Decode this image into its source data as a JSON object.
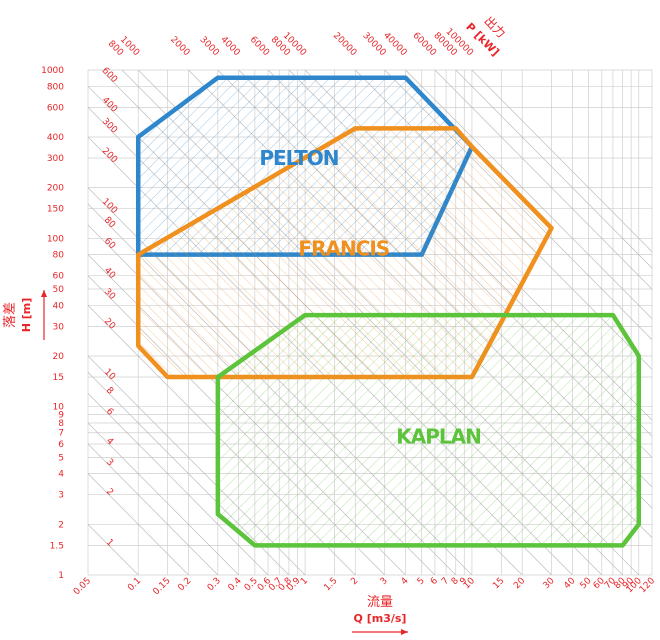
{
  "chart_data": {
    "type": "region",
    "title_x": "流量",
    "xlabel": "Q [m3/s]",
    "title_y": "落差",
    "ylabel": "H [m]",
    "title_p": "出力",
    "plabel": "P [kW]",
    "xscale": "log",
    "yscale": "log",
    "grid": true,
    "xlim": [
      0.05,
      120
    ],
    "ylim": [
      1,
      1000
    ],
    "xticks": [
      0.05,
      0.1,
      0.15,
      0.2,
      0.3,
      0.4,
      0.5,
      0.6,
      0.7,
      0.8,
      0.9,
      1,
      1.5,
      2,
      3,
      4,
      5,
      6,
      7,
      8,
      9,
      10,
      15,
      20,
      30,
      40,
      50,
      60,
      70,
      80,
      90,
      100,
      120
    ],
    "yticks": [
      1,
      1.5,
      2,
      3,
      4,
      5,
      6,
      7,
      8,
      9,
      10,
      15,
      20,
      30,
      40,
      50,
      60,
      80,
      100,
      150,
      200,
      300,
      400,
      600,
      800,
      1000
    ],
    "power_lines": [
      1,
      2,
      3,
      4,
      6,
      8,
      10,
      20,
      30,
      40,
      60,
      80,
      100,
      200,
      300,
      400,
      600,
      800,
      1000,
      2000,
      3000,
      4000,
      6000,
      8000,
      10000,
      20000,
      30000,
      40000,
      60000,
      80000,
      100000
    ],
    "series": [
      {
        "name": "PELTON",
        "color": "#2e87cc",
        "x": [
          0.1,
          0.1,
          0.3,
          4,
          10,
          5
        ],
        "y": [
          80,
          400,
          900,
          900,
          350,
          80
        ]
      },
      {
        "name": "FRANCIS",
        "color": "#f0901e",
        "x": [
          0.1,
          2,
          8,
          10,
          30,
          10,
          0.15,
          0.1
        ],
        "y": [
          80,
          450,
          450,
          350,
          115,
          15,
          15,
          23
        ]
      },
      {
        "name": "KAPLAN",
        "color": "#5cc43a",
        "x": [
          0.3,
          1,
          70,
          100,
          100,
          80,
          0.5,
          0.3
        ],
        "y": [
          15,
          35,
          35,
          20,
          2,
          1.5,
          1.5,
          2.3
        ]
      }
    ]
  }
}
